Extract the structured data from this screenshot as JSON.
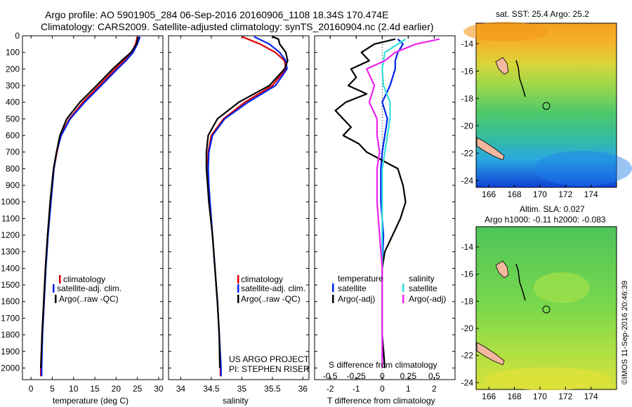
{
  "header": {
    "line1": "Argo profile: AO 5901905_284 06-Sep-2016 20160906_1108 18.34S 170.474E",
    "line2": "Climatology: CARS2009. Satellite-adjusted climatology: synTS_20160904.nc (2.4d earlier)"
  },
  "side_credit": "©IMOS 11-Sep-2016 20:46:39",
  "colors": {
    "climatology": "#dd0000",
    "satellite": "#0022ee",
    "argo": "#000000",
    "sat_s": "#33dddd",
    "argo_s": "#ee22ee"
  },
  "depth_ticks": [
    "0",
    "100",
    "200",
    "300",
    "400",
    "500",
    "600",
    "700",
    "800",
    "900",
    "1000",
    "1100",
    "1200",
    "1300",
    "1400",
    "1500",
    "1600",
    "1700",
    "1800",
    "1900",
    "2000"
  ],
  "chart_data": [
    {
      "type": "line",
      "xlabel": "temperature (deg C)",
      "xticks": [
        "0",
        "5",
        "10",
        "15",
        "20",
        "25",
        "30"
      ],
      "xlim": [
        -2,
        31
      ],
      "ylim": [
        2070,
        0
      ],
      "legend": [
        "climatology",
        "satellite-adj. clim.",
        "Argo(..raw -QC)"
      ],
      "series": [
        {
          "name": "climatology",
          "depth": [
            5,
            50,
            100,
            150,
            200,
            300,
            400,
            500,
            600,
            700,
            800,
            1000,
            1200,
            1400,
            1600,
            1800,
            2000,
            2050
          ],
          "values": [
            25.0,
            24.6,
            23.6,
            21.8,
            19.8,
            16.0,
            12.2,
            9.0,
            7.0,
            6.1,
            5.4,
            4.6,
            3.9,
            3.4,
            3.0,
            2.6,
            2.3,
            2.3
          ]
        },
        {
          "name": "satellite-adj. clim.",
          "depth": [
            5,
            50,
            100,
            150,
            200,
            300,
            400,
            500,
            600,
            700,
            800,
            1000,
            1200,
            1400,
            1600,
            1800,
            2000,
            2050
          ],
          "values": [
            25.6,
            25.0,
            24.0,
            22.3,
            20.3,
            16.5,
            12.6,
            9.2,
            7.1,
            6.0,
            5.4,
            4.7,
            4.0,
            3.5,
            3.1,
            2.7,
            2.5,
            2.5
          ]
        },
        {
          "name": "Argo(..raw -QC)",
          "depth": [
            5,
            50,
            100,
            150,
            200,
            300,
            400,
            500,
            600,
            700,
            800,
            1000,
            1200,
            1400,
            1600,
            1800,
            2000
          ],
          "values": [
            25.2,
            24.8,
            23.5,
            21.3,
            19.2,
            15.4,
            11.5,
            8.4,
            6.8,
            6.0,
            5.3,
            4.5,
            3.9,
            3.4,
            3.0,
            2.6,
            2.3
          ]
        }
      ]
    },
    {
      "type": "line",
      "xlabel": "salinity",
      "xticks": [
        "34",
        "34.5",
        "35",
        "35.5",
        "36"
      ],
      "xlim": [
        33.8,
        36.1
      ],
      "ylim": [
        2070,
        0
      ],
      "legend": [
        "climatology",
        "satellite-adj. clim.",
        "Argo(..raw -QC)"
      ],
      "annotations": [
        "US ARGO PROJECT",
        "PI: STEPHEN RISER"
      ],
      "series": [
        {
          "name": "climatology",
          "depth": [
            5,
            50,
            100,
            150,
            200,
            300,
            400,
            500,
            600,
            700,
            800,
            900,
            1000,
            1200,
            1400,
            1600,
            1800,
            2000,
            2050
          ],
          "values": [
            35.0,
            35.3,
            35.55,
            35.7,
            35.72,
            35.5,
            35.05,
            34.7,
            34.5,
            34.45,
            34.44,
            34.45,
            34.47,
            34.52,
            34.56,
            34.6,
            34.63,
            34.65,
            34.65
          ]
        },
        {
          "name": "satellite-adj. clim.",
          "depth": [
            5,
            50,
            100,
            150,
            200,
            300,
            400,
            500,
            600,
            700,
            800,
            900,
            1000,
            1200,
            1400,
            1600,
            1800,
            2000,
            2050
          ],
          "values": [
            35.2,
            35.45,
            35.62,
            35.72,
            35.74,
            35.55,
            35.1,
            34.72,
            34.52,
            34.46,
            34.45,
            34.46,
            34.48,
            34.52,
            34.56,
            34.6,
            34.63,
            34.66,
            34.66
          ]
        },
        {
          "name": "Argo(..raw -QC)",
          "depth": [
            5,
            20,
            50,
            100,
            150,
            200,
            300,
            400,
            500,
            600,
            700,
            800,
            900,
            1000,
            1200,
            1400,
            1600,
            1800,
            2000
          ],
          "values": [
            35.5,
            35.6,
            35.62,
            35.72,
            35.75,
            35.7,
            35.45,
            34.95,
            34.6,
            34.45,
            34.42,
            34.42,
            34.44,
            34.46,
            34.52,
            34.56,
            34.6,
            34.63,
            34.64
          ]
        }
      ]
    },
    {
      "type": "line",
      "xlabel": "T difference from climatology",
      "xlabel_top": "S difference from climatology",
      "xticks": [
        "-2",
        "-1",
        "0",
        "1",
        "2"
      ],
      "xticks_s": [
        "-0.5",
        "-0.25",
        "0",
        "0.25",
        "0.5"
      ],
      "xlim": [
        -2.6,
        2.8
      ],
      "ylim": [
        2070,
        0
      ],
      "legend_t": [
        "temperature",
        "satellite",
        "Argo(-adj)"
      ],
      "legend_s": [
        "salinity",
        "satellite",
        "Argo(-adj)"
      ],
      "series": [
        {
          "name": "satellite",
          "depth": [
            20,
            50,
            100,
            150,
            200,
            300,
            400,
            500,
            600,
            700,
            800,
            1000,
            1200,
            1400,
            1600,
            1800,
            2000
          ],
          "values": [
            0.6,
            0.8,
            0.6,
            0.5,
            0.5,
            0.3,
            0.0,
            0.2,
            0.1,
            0.0,
            -0.05,
            -0.05,
            0.05,
            0.0,
            0.0,
            0.0,
            0.1
          ]
        },
        {
          "name": "Argo(-adj)",
          "depth": [
            20,
            50,
            100,
            150,
            200,
            250,
            300,
            350,
            400,
            450,
            500,
            550,
            600,
            650,
            700,
            750,
            800,
            900,
            1000,
            1100,
            1200,
            1300,
            1400,
            1600,
            1800,
            2000
          ],
          "values": [
            0.5,
            -0.3,
            -0.8,
            -0.5,
            -1.2,
            -1.0,
            -1.3,
            -0.6,
            -1.4,
            -1.8,
            -1.5,
            -1.2,
            -1.5,
            -0.9,
            -0.6,
            0.0,
            0.6,
            0.8,
            0.9,
            0.7,
            0.4,
            0.1,
            0.0,
            0.0,
            0.0,
            0.1
          ]
        },
        {
          "name": "satellite S",
          "depth": [
            20,
            50,
            100,
            150,
            200,
            300,
            400,
            500,
            600,
            700,
            800,
            1000,
            1200,
            1400,
            1600,
            1800,
            2000
          ],
          "values": [
            0.9,
            0.6,
            0.1,
            0.05,
            0.0,
            0.05,
            0.3,
            0.3,
            0.2,
            0.1,
            0.0,
            0.0,
            0.0,
            0.0,
            0.0,
            0.0,
            0.0
          ]
        },
        {
          "name": "Argo(-adj) S",
          "depth": [
            20,
            50,
            100,
            150,
            200,
            300,
            400,
            500,
            600,
            700,
            800,
            1000,
            1200,
            1400,
            1600,
            1800,
            2000
          ],
          "values": [
            2.2,
            1.3,
            0.5,
            0.1,
            -0.6,
            -0.3,
            -0.5,
            -0.2,
            -0.2,
            -0.1,
            -0.2,
            -0.2,
            -0.1,
            0.0,
            0.0,
            0.0,
            0.0
          ]
        }
      ]
    },
    {
      "type": "heatmap",
      "title": "sat. SST: 25.4  Argo: 25.2",
      "xticks": [
        "166",
        "168",
        "170",
        "172",
        "174"
      ],
      "yticks": [
        "-14",
        "-16",
        "-18",
        "-20",
        "-22",
        "-24"
      ],
      "xlim": [
        165,
        176
      ],
      "ylim": [
        -24.5,
        -12.5
      ],
      "marker": {
        "lon": 170.474,
        "lat": -18.34
      }
    },
    {
      "type": "heatmap",
      "title": "Altim. SLA: 0.027",
      "subtitle": "Argo h1000: -0.11  h2000: -0.083",
      "xticks": [
        "166",
        "168",
        "170",
        "172",
        "174"
      ],
      "yticks": [
        "-14",
        "-16",
        "-18",
        "-20",
        "-22",
        "-24"
      ],
      "xlim": [
        165,
        176
      ],
      "ylim": [
        -24.5,
        -12.5
      ],
      "marker": {
        "lon": 170.474,
        "lat": -18.34
      }
    }
  ]
}
